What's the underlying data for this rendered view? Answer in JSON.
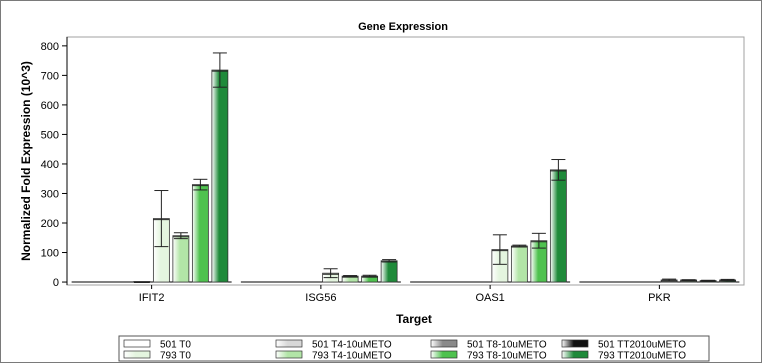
{
  "chart_data": {
    "type": "bar",
    "title": "Gene Expression",
    "xlabel": "Target",
    "ylabel": "Normalized Fold Expression (10^3)",
    "ylim": [
      -10,
      830
    ],
    "yticks": [
      0,
      100,
      200,
      300,
      400,
      500,
      600,
      700,
      800
    ],
    "categories": [
      "IFIT2",
      "ISG56",
      "OAS1",
      "PKR"
    ],
    "grid": false,
    "legend_position": "bottom",
    "series": [
      {
        "name": "501 T0",
        "color": "#ffffff",
        "values": [
          0,
          0,
          0,
          0
        ],
        "errors": [
          0,
          0,
          0,
          0
        ]
      },
      {
        "name": "501 T4-10uMETO",
        "color": "#d8d8d8",
        "values": [
          0,
          0,
          0,
          0
        ],
        "errors": [
          0,
          0,
          0,
          0
        ]
      },
      {
        "name": "501 T8-10uMETO",
        "color": "#8a8a8a",
        "values": [
          0,
          0,
          0,
          0
        ],
        "errors": [
          0,
          0,
          0,
          0
        ]
      },
      {
        "name": "501 TT2010uMETO",
        "color": "#111111",
        "values": [
          2,
          0,
          0,
          0
        ],
        "errors": [
          0,
          0,
          0,
          0
        ]
      },
      {
        "name": "793 T0",
        "color": "#e4f5df",
        "values": [
          215,
          30,
          110,
          7
        ],
        "errors": [
          95,
          15,
          50,
          3
        ]
      },
      {
        "name": "793 T4-10uMETO",
        "color": "#b2e5a7",
        "values": [
          157,
          20,
          122,
          7
        ],
        "errors": [
          10,
          2,
          3,
          1
        ]
      },
      {
        "name": "793 T8-10uMETO",
        "color": "#4fc24f",
        "values": [
          330,
          20,
          140,
          5
        ],
        "errors": [
          18,
          3,
          25,
          1
        ]
      },
      {
        "name": "793 TT2010uMETO",
        "color": "#1f8a3a",
        "values": [
          718,
          72,
          380,
          7
        ],
        "errors": [
          58,
          4,
          35,
          2
        ]
      }
    ]
  }
}
